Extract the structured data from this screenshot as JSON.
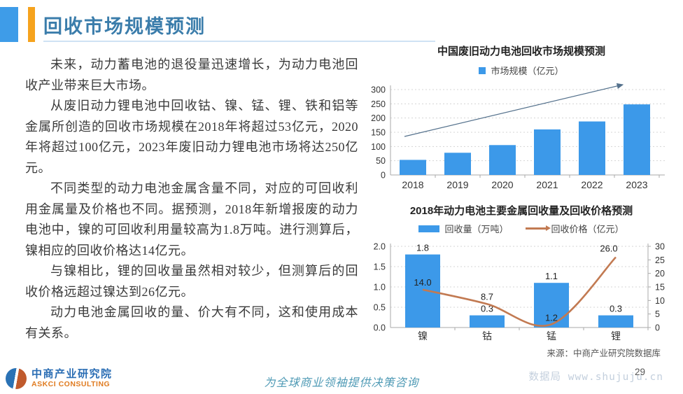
{
  "header": {
    "title": "回收市场规模预测"
  },
  "body": {
    "paragraphs": [
      "未来，动力蓄电池的退役量迅速增长，为动力电池回收产业带来巨大市场。",
      "从废旧动力锂电池中回收钴、镍、锰、锂、铁和铝等金属所创造的回收市场规模在2018年将超过53亿元，2020年将超过100亿元，2023年废旧动力锂电池市场将达250亿元。",
      "不同类型的动力电池金属含量不同，对应的可回收利用金属量及价格也不同。据预测，2018年新增报废的动力电池中，镍的可回收利用量较高为1.8万吨。进行测算后，镍相应的回收价格达14亿元。",
      "与镍相比，锂的回收量虽然相对较少，但测算后的回收价格远超过镍达到26亿元。",
      "动力电池金属回收的量、价大有不同，这和使用成本有关系。"
    ]
  },
  "chart_data": [
    {
      "type": "bar",
      "title": "中国废旧动力电池回收市场规模预测",
      "legend": [
        "市场规模（亿元）"
      ],
      "categories": [
        "2018",
        "2019",
        "2020",
        "2021",
        "2022",
        "2023"
      ],
      "values": [
        53,
        78,
        105,
        160,
        188,
        248
      ],
      "ylim": [
        0,
        300
      ],
      "ytick_step": 50,
      "grid": true,
      "legend_position": "top",
      "trend_arrow": true
    },
    {
      "type": "bar+line",
      "title": "2018年动力电池主要金属回收量及回收价格预测",
      "categories": [
        "镍",
        "钴",
        "锰",
        "锂"
      ],
      "series": [
        {
          "name": "回收量（万吨）",
          "type": "bar",
          "axis": "left",
          "values": [
            1.8,
            0.3,
            1.1,
            0.3
          ]
        },
        {
          "name": "回收价格（亿元）",
          "type": "line",
          "axis": "right",
          "values": [
            14.0,
            8.7,
            1.2,
            26.0
          ]
        }
      ],
      "left_ylim": [
        0,
        2.0
      ],
      "left_step": 0.5,
      "right_ylim": [
        0,
        30
      ],
      "right_step": 5,
      "grid": true,
      "legend_position": "top",
      "source": "来源：中商产业研究院数据库"
    }
  ],
  "footer": {
    "logo": {
      "name_cn": "中商产业研究院",
      "name_en": "ASKCI CONSULTING"
    },
    "slogan": "为全球商业领袖提供决策咨询",
    "watermark": "数据局 www.shujuju.cn",
    "page_number": "29"
  },
  "colors": {
    "bar_blue": "#3c99e9",
    "line_orange": "#c27a52",
    "trend_arrow": "#54718c",
    "title_blue": "#3b7dab",
    "accent_square_blue": "#3e9ce8",
    "accent_bar_orange": "#f6a31d",
    "logo_blue": "#2a6db4",
    "logo_orange": "#e07b20",
    "slogan_teal": "#4f9ab5"
  }
}
